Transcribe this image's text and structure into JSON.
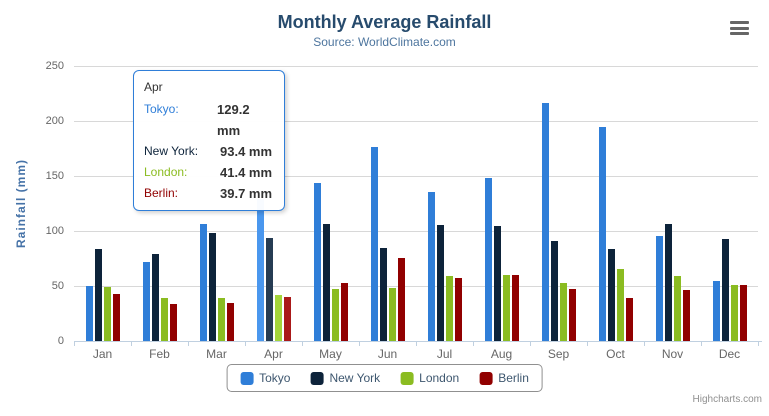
{
  "chart": {
    "title": "Monthly Average Rainfall",
    "subtitle": "Source: WorldClimate.com",
    "y_axis_title": "Rainfall (mm)",
    "credits": "Highcharts.com"
  },
  "chart_data": {
    "type": "bar",
    "title": "Monthly Average Rainfall",
    "subtitle": "Source: WorldClimate.com",
    "xlabel": "",
    "ylabel": "Rainfall (mm)",
    "ylim": [
      0,
      250
    ],
    "y_tick_step": 50,
    "grid": true,
    "legend_position": "bottom",
    "categories": [
      "Jan",
      "Feb",
      "Mar",
      "Apr",
      "May",
      "Jun",
      "Jul",
      "Aug",
      "Sep",
      "Oct",
      "Nov",
      "Dec"
    ],
    "series": [
      {
        "name": "Tokyo",
        "color": "#2f7ed8",
        "hover_color": "#4a97ee",
        "values": [
          49.9,
          71.5,
          106.4,
          129.2,
          144.0,
          176.0,
          135.6,
          148.5,
          216.4,
          194.1,
          95.6,
          54.4
        ]
      },
      {
        "name": "New York",
        "color": "#0d233a",
        "hover_color": "#263c53",
        "values": [
          83.6,
          78.8,
          98.5,
          93.4,
          106.0,
          84.5,
          105.0,
          104.3,
          91.2,
          83.5,
          106.6,
          92.3
        ]
      },
      {
        "name": "London",
        "color": "#8bbc21",
        "hover_color": "#a4d53a",
        "values": [
          48.9,
          38.8,
          39.3,
          41.4,
          47.0,
          48.3,
          59.0,
          59.6,
          52.4,
          65.2,
          59.3,
          51.2
        ]
      },
      {
        "name": "Berlin",
        "color": "#910000",
        "hover_color": "#aa1919",
        "values": [
          42.4,
          33.2,
          34.5,
          39.7,
          52.6,
          75.5,
          57.4,
          60.4,
          47.6,
          39.1,
          46.8,
          51.1
        ]
      }
    ],
    "hovered_category": "Apr",
    "hovered_category_index": 3
  },
  "y_axis": {
    "tick_labels": [
      "0",
      "50",
      "100",
      "150",
      "200",
      "250"
    ]
  },
  "tooltip": {
    "header": "Apr",
    "border_color": "#2f7ed8",
    "rows": [
      {
        "name": "Tokyo:",
        "value": "129.2 mm",
        "color": "#2f7ed8"
      },
      {
        "name": "New York:",
        "value": "93.4 mm",
        "color": "#0d233a"
      },
      {
        "name": "London:",
        "value": "41.4 mm",
        "color": "#8bbc21"
      },
      {
        "name": "Berlin:",
        "value": "39.7 mm",
        "color": "#910000"
      }
    ]
  },
  "legend": {
    "items": [
      {
        "label": "Tokyo",
        "color": "#2f7ed8"
      },
      {
        "label": "New York",
        "color": "#0d233a"
      },
      {
        "label": "London",
        "color": "#8bbc21"
      },
      {
        "label": "Berlin",
        "color": "#910000"
      }
    ]
  },
  "colors": {
    "title": "#274b6d",
    "subtitle": "#4d759e",
    "axis_labels": "#666666",
    "y_axis_title": "#4572a7",
    "grid_line": "#d8d8d8",
    "axis_line": "#c0d0e0",
    "legend_text": "#3e576f",
    "credits": "#909090"
  }
}
